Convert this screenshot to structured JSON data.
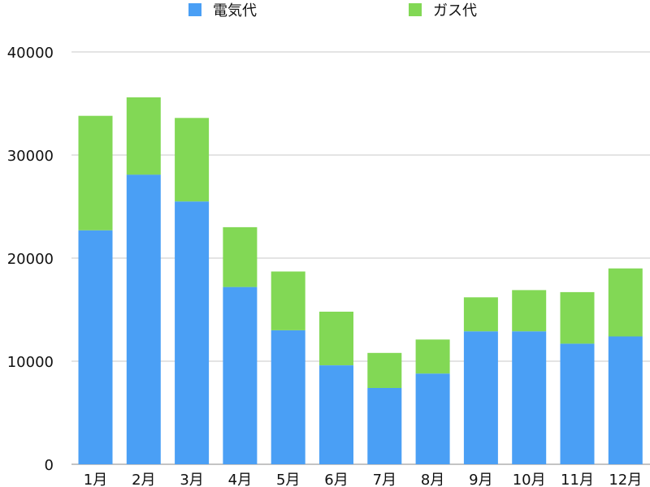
{
  "chart_data": {
    "type": "bar",
    "stacked": true,
    "categories": [
      "1月",
      "2月",
      "3月",
      "4月",
      "5月",
      "6月",
      "7月",
      "8月",
      "9月",
      "10月",
      "11月",
      "12月"
    ],
    "series": [
      {
        "name": "電気代",
        "color": "#4a9ff5",
        "values": [
          22700,
          28100,
          25500,
          17200,
          13000,
          9600,
          7400,
          8800,
          12900,
          12900,
          11700,
          12400
        ]
      },
      {
        "name": "ガス代",
        "color": "#82d855",
        "values": [
          11100,
          7500,
          8100,
          5800,
          5700,
          5200,
          3400,
          3300,
          3300,
          4000,
          5000,
          6600
        ]
      }
    ],
    "ylim": [
      0,
      40000
    ],
    "yticks": [
      "0",
      "10000",
      "20000",
      "30000",
      "40000"
    ],
    "grid": true,
    "legend_position": "top"
  }
}
